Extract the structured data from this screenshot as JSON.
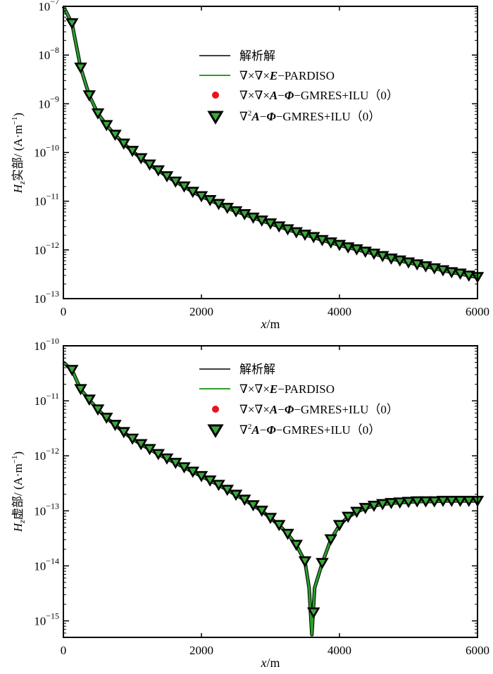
{
  "chart_data": [
    {
      "type": "line",
      "panel": "top",
      "ylabel_main": "H",
      "ylabel_sub": "z",
      "ylabel_rest": "实部/ (A·m",
      "ylabel_sup": "−1",
      "ylabel_close": ")",
      "xlabel_italic": "x",
      "xlabel_rest": "/m",
      "yscale": "log",
      "xlim": [
        0,
        6000
      ],
      "ylim_exp": [
        -13,
        -7
      ],
      "xticks": [
        0,
        2000,
        4000,
        6000
      ],
      "xtick_labels": [
        "0",
        "2000",
        "4000",
        "6000"
      ],
      "ytick_exps": [
        -7,
        -8,
        -9,
        -10,
        -11,
        -12,
        -13
      ],
      "ytick_exp_labels": [
        "−7",
        "−8",
        "−9",
        "−10",
        "−11",
        "−12",
        "−13"
      ],
      "ytick_base": "10",
      "legend": {
        "analytic": "解析解",
        "pardiso_prefix": "∇×∇×",
        "pardiso_E": "E",
        "pardiso_suffix": "−PARDISO",
        "gmres_prefix": "∇×∇×",
        "gmres_A": "A",
        "gmres_dash": "−",
        "gmres_phi": "Φ",
        "gmres_suffix": "−GMRES+ILU（0）",
        "lap_nabla": "∇",
        "lap_sup": "2",
        "lap_A": "A",
        "lap_dash": "−",
        "lap_phi": "Φ",
        "lap_suffix": "−GMRES+ILU（0）"
      },
      "series": [
        {
          "name": "解析解",
          "style": "line",
          "color": "#000000"
        },
        {
          "name": "∇×∇×E−PARDISO",
          "style": "line",
          "color": "#2ca02c"
        },
        {
          "name": "∇×∇×A−Φ−GMRES+ILU（0）",
          "style": "marker",
          "color": "#e8141e"
        },
        {
          "name": "∇²A−Φ−GMRES+ILU（0）",
          "style": "marker",
          "color": "#000000"
        }
      ],
      "x": [
        125,
        250,
        375,
        500,
        625,
        750,
        875,
        1000,
        1125,
        1250,
        1375,
        1500,
        1625,
        1750,
        1875,
        2000,
        2125,
        2250,
        2375,
        2500,
        2625,
        2750,
        2875,
        3000,
        3125,
        3250,
        3375,
        3500,
        3625,
        3750,
        3875,
        4000,
        4125,
        4250,
        4375,
        4500,
        4625,
        4750,
        4875,
        5000,
        5125,
        5250,
        5375,
        5500,
        5625,
        5750,
        5875,
        6000
      ],
      "log10_y": [
        -7.35,
        -8.26,
        -8.83,
        -9.2,
        -9.44,
        -9.64,
        -9.82,
        -9.97,
        -10.12,
        -10.25,
        -10.37,
        -10.49,
        -10.6,
        -10.7,
        -10.81,
        -10.9,
        -10.98,
        -11.06,
        -11.14,
        -11.21,
        -11.27,
        -11.34,
        -11.4,
        -11.46,
        -11.52,
        -11.58,
        -11.64,
        -11.69,
        -11.74,
        -11.8,
        -11.85,
        -11.9,
        -11.95,
        -11.99,
        -12.04,
        -12.08,
        -12.13,
        -12.18,
        -12.22,
        -12.26,
        -12.3,
        -12.34,
        -12.38,
        -12.42,
        -12.46,
        -12.49,
        -12.53,
        -12.56
      ]
    },
    {
      "type": "line",
      "panel": "bottom",
      "ylabel_main": "H",
      "ylabel_sub": "z",
      "ylabel_rest": "虚部/ (A·m",
      "ylabel_sup": "−1",
      "ylabel_close": ")",
      "xlabel_italic": "x",
      "xlabel_rest": "/m",
      "yscale": "log",
      "xlim": [
        0,
        6000
      ],
      "ylim_exp": [
        -15.3,
        -10
      ],
      "xticks": [
        0,
        2000,
        4000,
        6000
      ],
      "xtick_labels": [
        "0",
        "2000",
        "4000",
        "6000"
      ],
      "ytick_exps": [
        -10,
        -11,
        -12,
        -13,
        -14,
        -15
      ],
      "ytick_exp_labels": [
        "−10",
        "−11",
        "−12",
        "−13",
        "−14",
        "−15"
      ],
      "ytick_base": "10",
      "legend": {
        "analytic": "解析解",
        "pardiso_prefix": "∇×∇×",
        "pardiso_E": "E",
        "pardiso_suffix": "−PARDISO",
        "gmres_prefix": "∇×∇×",
        "gmres_A": "A",
        "gmres_dash": "−",
        "gmres_phi": "Φ",
        "gmres_suffix": "−GMRES+ILU（0）",
        "lap_nabla": "∇",
        "lap_sup": "2",
        "lap_A": "A",
        "lap_dash": "−",
        "lap_phi": "Φ",
        "lap_suffix": "−GMRES+ILU（0）"
      },
      "series": [
        {
          "name": "解析解",
          "style": "line",
          "color": "#000000"
        },
        {
          "name": "∇×∇×E−PARDISO",
          "style": "line",
          "color": "#2ca02c"
        },
        {
          "name": "∇×∇×A−Φ−GMRES+ILU（0）",
          "style": "marker",
          "color": "#e8141e"
        },
        {
          "name": "∇²A−Φ−GMRES+ILU（0）",
          "style": "marker",
          "color": "#000000"
        }
      ],
      "x": [
        125,
        250,
        375,
        500,
        625,
        750,
        875,
        1000,
        1125,
        1250,
        1375,
        1500,
        1625,
        1750,
        1875,
        2000,
        2125,
        2250,
        2375,
        2500,
        2625,
        2750,
        2875,
        3000,
        3125,
        3250,
        3375,
        3500,
        3625,
        3750,
        3875,
        4000,
        4125,
        4250,
        4375,
        4500,
        4625,
        4750,
        4875,
        5000,
        5125,
        5250,
        5375,
        5500,
        5625,
        5750,
        5875,
        6000
      ],
      "log10_y": [
        -10.44,
        -10.79,
        -10.98,
        -11.16,
        -11.31,
        -11.44,
        -11.57,
        -11.69,
        -11.79,
        -11.88,
        -11.97,
        -12.05,
        -12.13,
        -12.21,
        -12.29,
        -12.37,
        -12.45,
        -12.53,
        -12.62,
        -12.71,
        -12.8,
        -12.9,
        -13.0,
        -13.13,
        -13.26,
        -13.42,
        -13.62,
        -13.92,
        -14.85,
        -13.95,
        -13.52,
        -13.26,
        -13.11,
        -13.02,
        -12.95,
        -12.91,
        -12.88,
        -12.86,
        -12.85,
        -12.84,
        -12.83,
        -12.83,
        -12.83,
        -12.82,
        -12.82,
        -12.82,
        -12.82,
        -12.82
      ],
      "curve_x": [
        0,
        125,
        250,
        375,
        500,
        625,
        750,
        875,
        1000,
        1125,
        1250,
        1375,
        1500,
        1625,
        1750,
        1875,
        2000,
        2125,
        2250,
        2375,
        2500,
        2625,
        2750,
        2875,
        3000,
        3125,
        3250,
        3375,
        3500,
        3560,
        3600,
        3640,
        3750,
        3875,
        4000,
        4125,
        4250,
        4375,
        4500,
        4625,
        4750,
        4875,
        5000,
        5125,
        5250,
        5375,
        5500,
        5625,
        5750,
        5875,
        6000
      ],
      "curve_log10_y": [
        -10.3,
        -10.44,
        -10.79,
        -10.98,
        -11.16,
        -11.31,
        -11.44,
        -11.57,
        -11.69,
        -11.79,
        -11.88,
        -11.97,
        -12.05,
        -12.13,
        -12.21,
        -12.29,
        -12.37,
        -12.45,
        -12.53,
        -12.62,
        -12.71,
        -12.8,
        -12.9,
        -13.0,
        -13.13,
        -13.26,
        -13.42,
        -13.62,
        -13.92,
        -14.4,
        -15.25,
        -14.4,
        -13.95,
        -13.52,
        -13.26,
        -13.11,
        -13.02,
        -12.95,
        -12.91,
        -12.88,
        -12.86,
        -12.85,
        -12.84,
        -12.83,
        -12.83,
        -12.83,
        -12.82,
        -12.82,
        -12.82,
        -12.82,
        -12.82
      ]
    }
  ]
}
